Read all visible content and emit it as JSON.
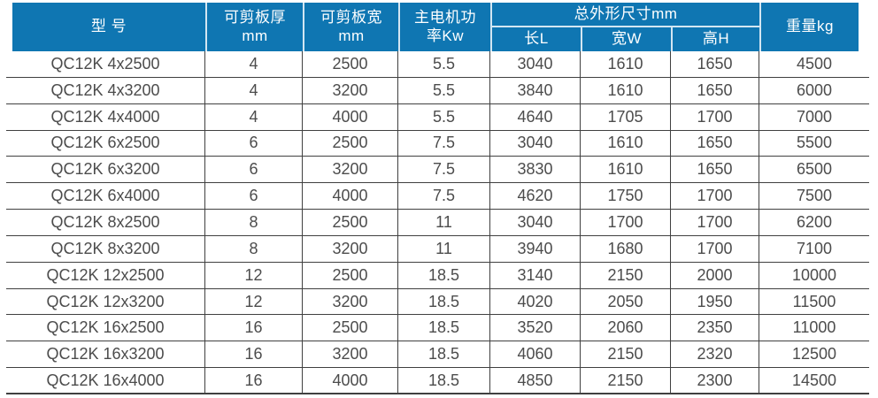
{
  "colors": {
    "header_bg": "#0f76b2",
    "header_text": "#ffffff",
    "header_divider": "#d3e6f2",
    "body_text": "#4c4c4c",
    "grid_line": "#404040"
  },
  "table": {
    "header": {
      "model": "型 号",
      "thickness": "可剪板厚\nmm",
      "width": "可剪板宽\nmm",
      "power": "主电机功\n率Kw",
      "dimensions_group": "总外形尺寸mm",
      "length": "长L",
      "width_w": "宽W",
      "height": "高H",
      "weight": "重量kg"
    },
    "rows": [
      [
        "QC12K 4x2500",
        "4",
        "2500",
        "5.5",
        "3040",
        "1610",
        "1650",
        "4500"
      ],
      [
        "QC12K 4x3200",
        "4",
        "3200",
        "5.5",
        "3840",
        "1610",
        "1650",
        "6000"
      ],
      [
        "QC12K 4x4000",
        "4",
        "4000",
        "5.5",
        "4640",
        "1705",
        "1700",
        "7000"
      ],
      [
        "QC12K 6x2500",
        "6",
        "2500",
        "7.5",
        "3040",
        "1610",
        "1650",
        "5500"
      ],
      [
        "QC12K 6x3200",
        "6",
        "3200",
        "7.5",
        "3830",
        "1610",
        "1650",
        "6500"
      ],
      [
        "QC12K 6x4000",
        "6",
        "4000",
        "7.5",
        "4620",
        "1750",
        "1700",
        "7500"
      ],
      [
        "QC12K 8x2500",
        "8",
        "2500",
        "11",
        "3040",
        "1700",
        "1700",
        "6200"
      ],
      [
        "QC12K 8x3200",
        "8",
        "3200",
        "11",
        "3940",
        "1680",
        "1700",
        "7100"
      ],
      [
        "QC12K 12x2500",
        "12",
        "2500",
        "18.5",
        "3140",
        "2150",
        "2000",
        "10000"
      ],
      [
        "QC12K 12x3200",
        "12",
        "3200",
        "18.5",
        "4020",
        "2050",
        "1950",
        "11500"
      ],
      [
        "QC12K 16x2500",
        "16",
        "2500",
        "18.5",
        "3520",
        "2060",
        "2350",
        "11000"
      ],
      [
        "QC12K 16x3200",
        "16",
        "3200",
        "18.5",
        "4060",
        "2150",
        "2320",
        "12500"
      ],
      [
        "QC12K 16x4000",
        "16",
        "4000",
        "18.5",
        "4850",
        "2150",
        "2300",
        "14500"
      ]
    ]
  }
}
